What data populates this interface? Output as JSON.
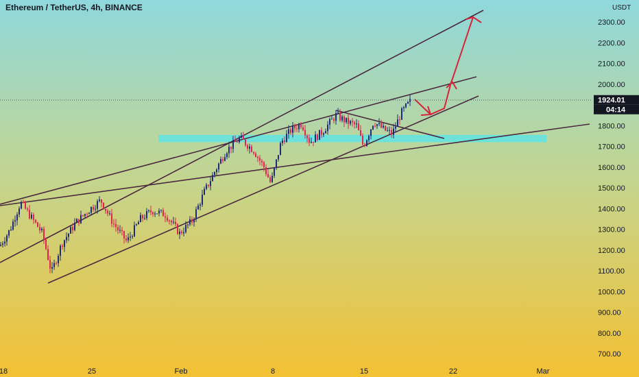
{
  "chart_data": {
    "type": "candlestick",
    "title": "Ethereum / TetherUS, 4h, BINANCE",
    "currency_label": "USDT",
    "last_price": "1924.01",
    "countdown": "04:14",
    "x_ticks": [
      "18",
      "25",
      "Feb",
      "8",
      "15",
      "22",
      "Mar"
    ],
    "y_ticks": [
      "2300.00",
      "2200.00",
      "2100.00",
      "2000.00",
      "1800.00",
      "1700.00",
      "1600.00",
      "1500.00",
      "1400.00",
      "1300.00",
      "1200.00",
      "1100.00",
      "1000.00",
      "900.00",
      "800.00",
      "700.00"
    ],
    "ylim": [
      680,
      2380
    ],
    "grid": false,
    "candle_colors": {
      "up": "#1e2a78",
      "down": "#e0244a"
    },
    "resistance_zone": [
      1720,
      1755
    ],
    "projection_targets": [
      2000,
      2330
    ]
  },
  "colors": {
    "bg_top": "#8fd8dc",
    "bg_mid": "#c4d58e",
    "bg_bottom": "#f3c133",
    "line": "#4a2a3f",
    "zone": "#64e3e1",
    "arrow": "#d6243c",
    "price_label_bg": "#131722"
  }
}
